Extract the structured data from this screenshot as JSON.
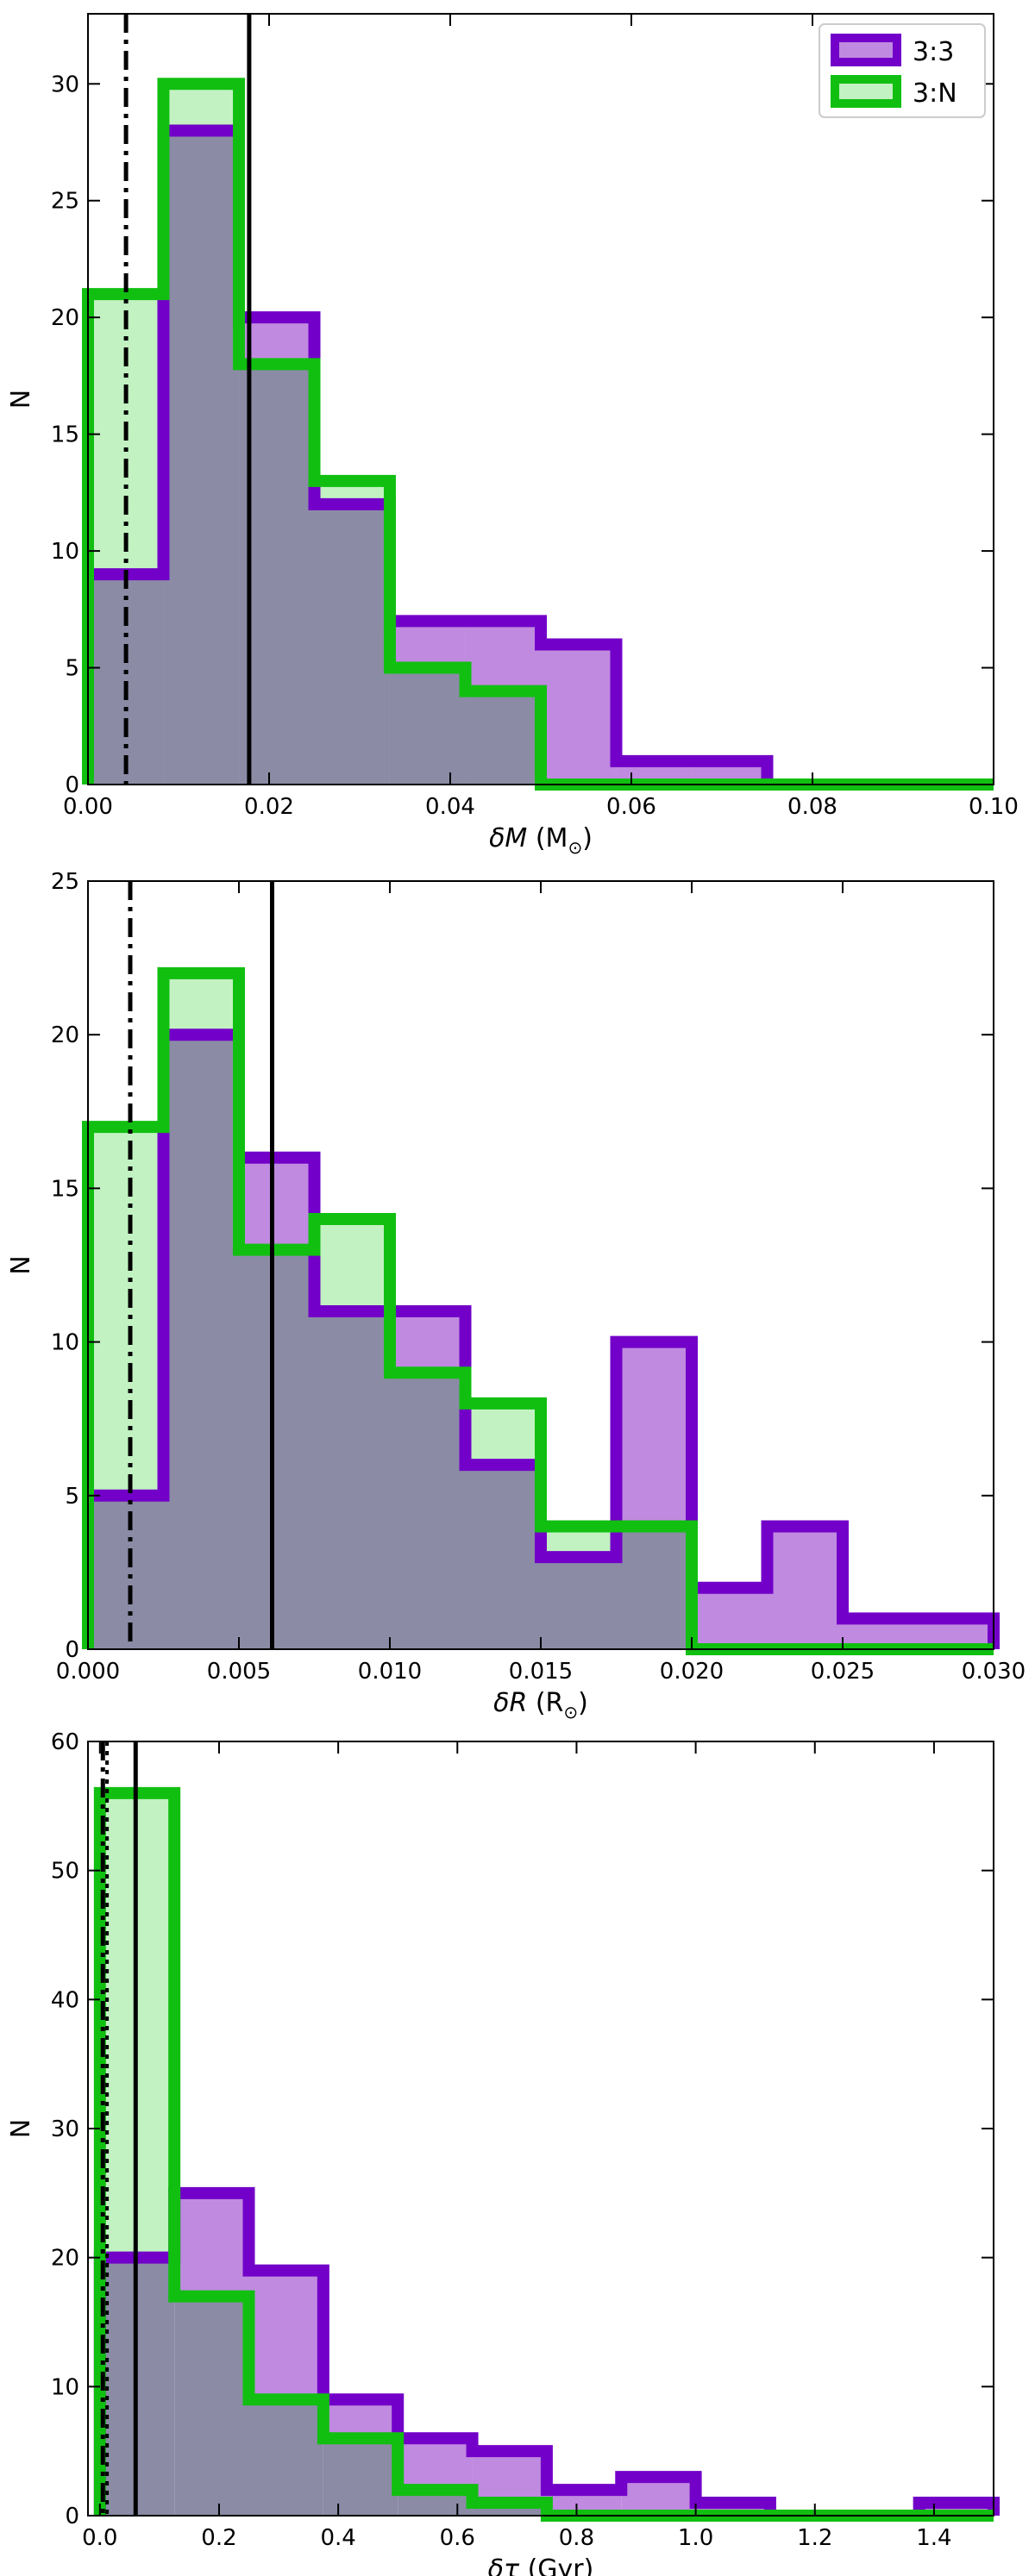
{
  "colors": {
    "purple_edge": "#7200c8",
    "purple_fill": "#c08ae0",
    "green_edge": "#11bf11",
    "green_fill": "#c2f2c2",
    "overlap_fill": "#8b8ba6",
    "frame": "#000000"
  },
  "chart_data": [
    {
      "type": "histogram",
      "xlabel_symbol": "δM",
      "xlabel_unit": "(M",
      "xlabel_sub": "⊙",
      "xlabel_close": ")",
      "ylabel": "N",
      "xlim": [
        0.0,
        0.1
      ],
      "ylim": [
        0,
        33
      ],
      "xticks": [
        0.0,
        0.02,
        0.04,
        0.06,
        0.08,
        0.1
      ],
      "xtick_labels": [
        "0.00",
        "0.02",
        "0.04",
        "0.06",
        "0.08",
        "0.10"
      ],
      "yticks": [
        0,
        5,
        10,
        15,
        20,
        25,
        30
      ],
      "ytick_labels": [
        "0",
        "5",
        "10",
        "15",
        "20",
        "25",
        "30"
      ],
      "series": [
        {
          "name": "3:3",
          "edges": [
            0.0,
            0.00833,
            0.01667,
            0.025,
            0.03333,
            0.04167,
            0.05,
            0.05833,
            0.06667,
            0.075,
            0.1
          ],
          "counts": [
            9,
            28,
            20,
            12,
            7,
            7,
            6,
            1,
            1,
            0
          ]
        },
        {
          "name": "3:N",
          "edges": [
            0.0,
            0.00833,
            0.01667,
            0.025,
            0.03333,
            0.04167,
            0.05,
            0.1
          ],
          "counts": [
            21,
            30,
            18,
            13,
            5,
            4,
            0
          ]
        }
      ],
      "vlines": [
        {
          "style": "solid",
          "x": 0.0178
        },
        {
          "style": "dashdot",
          "x": 0.0042
        }
      ],
      "legend": {
        "position": "upper right",
        "entries": [
          {
            "label": "3:3",
            "series": "3:3"
          },
          {
            "label": "3:N",
            "series": "3:N"
          }
        ]
      }
    },
    {
      "type": "histogram",
      "xlabel_symbol": "δR",
      "xlabel_unit": "(R",
      "xlabel_sub": "⊙",
      "xlabel_close": ")",
      "ylabel": "N",
      "xlim": [
        0.0,
        0.03
      ],
      "ylim": [
        0,
        25
      ],
      "xticks": [
        0.0,
        0.005,
        0.01,
        0.015,
        0.02,
        0.025,
        0.03
      ],
      "xtick_labels": [
        "0.000",
        "0.005",
        "0.010",
        "0.015",
        "0.020",
        "0.025",
        "0.030"
      ],
      "yticks": [
        0,
        5,
        10,
        15,
        20,
        25
      ],
      "ytick_labels": [
        "0",
        "5",
        "10",
        "15",
        "20",
        "25"
      ],
      "series": [
        {
          "name": "3:3",
          "edges": [
            0.0,
            0.0025,
            0.005,
            0.0075,
            0.01,
            0.0125,
            0.015,
            0.0175,
            0.02,
            0.0225,
            0.025,
            0.03
          ],
          "counts": [
            5,
            20,
            16,
            11,
            11,
            6,
            3,
            10,
            2,
            4,
            1
          ]
        },
        {
          "name": "3:N",
          "edges": [
            0.0,
            0.0025,
            0.005,
            0.0075,
            0.01,
            0.0125,
            0.015,
            0.0175,
            0.02,
            0.03
          ],
          "counts": [
            17,
            22,
            13,
            14,
            9,
            8,
            4,
            4,
            0
          ]
        }
      ],
      "vlines": [
        {
          "style": "solid",
          "x": 0.0061
        },
        {
          "style": "dashdot",
          "x": 0.0014
        }
      ]
    },
    {
      "type": "histogram",
      "xlabel_symbol": "δτ",
      "xlabel_unit": "(Gyr)",
      "xlabel_sub": "",
      "xlabel_close": "",
      "ylabel": "N",
      "xlim": [
        -0.02,
        1.5
      ],
      "ylim": [
        0,
        60
      ],
      "xticks": [
        0.0,
        0.2,
        0.4,
        0.6,
        0.8,
        1.0,
        1.2,
        1.4
      ],
      "xtick_labels": [
        "0.0",
        "0.2",
        "0.4",
        "0.6",
        "0.8",
        "1.0",
        "1.2",
        "1.4"
      ],
      "yticks": [
        0,
        10,
        20,
        30,
        40,
        50,
        60
      ],
      "ytick_labels": [
        "0",
        "10",
        "20",
        "30",
        "40",
        "50",
        "60"
      ],
      "series": [
        {
          "name": "3:3",
          "edges": [
            0.0,
            0.125,
            0.25,
            0.375,
            0.5,
            0.625,
            0.75,
            0.875,
            1.0,
            1.125,
            1.25,
            1.375,
            1.5
          ],
          "counts": [
            20,
            25,
            19,
            9,
            6,
            5,
            2,
            3,
            1,
            0,
            0,
            1
          ]
        },
        {
          "name": "3:N",
          "edges": [
            0.0,
            0.125,
            0.25,
            0.375,
            0.5,
            0.625,
            0.75,
            1.5
          ],
          "counts": [
            56,
            17,
            9,
            6,
            2,
            1,
            0
          ]
        }
      ],
      "vlines": [
        {
          "style": "solid",
          "x": 0.06
        },
        {
          "style": "dashdot",
          "x": 0.005
        },
        {
          "style": "dotted",
          "x": 0.012
        }
      ]
    }
  ]
}
